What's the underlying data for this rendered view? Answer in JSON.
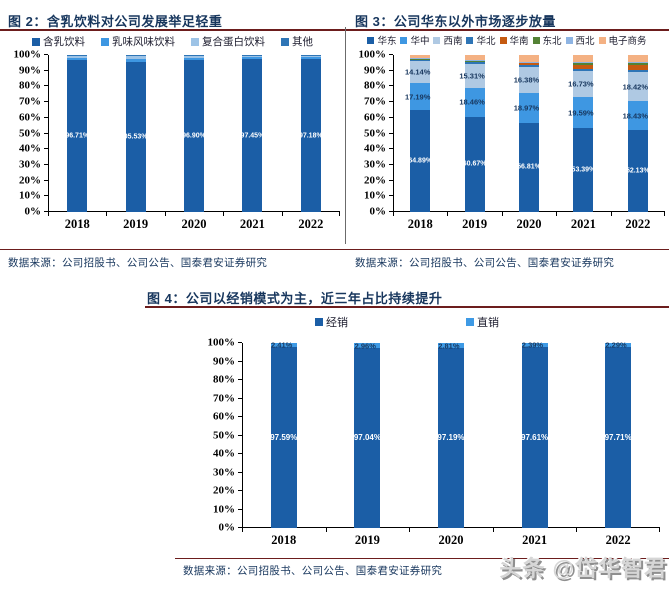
{
  "watermark": "头条 @岱华智君",
  "chart_data": [
    {
      "id": "figure-2",
      "type": "bar",
      "stacked": true,
      "title": "图 2：含乳饮料对公司发展举足轻重",
      "source": "数据来源：公司招股书、公司公告、国泰君安证券研究",
      "categories": [
        "2018",
        "2019",
        "2020",
        "2021",
        "2022"
      ],
      "ylim": [
        0,
        100
      ],
      "ytick_step": 10,
      "ytick_format": "percent",
      "grid": false,
      "legend_position": "top",
      "series": [
        {
          "name": "含乳饮料",
          "color": "#1b5ea6",
          "values": [
            96.71,
            95.53,
            96.9,
            97.45,
            97.18
          ],
          "labels": [
            "96.71%",
            "95.53%",
            "96.90%",
            "97.45%",
            "97.18%"
          ],
          "label_mode": "inside-white"
        },
        {
          "name": "乳味风味饮料",
          "color": "#3e97e2",
          "values": [
            1.5,
            2.1,
            1.5,
            1.2,
            1.4
          ]
        },
        {
          "name": "复合蛋白饮料",
          "color": "#9dc3e6",
          "values": [
            1.5,
            2.0,
            1.3,
            1.1,
            1.2
          ]
        },
        {
          "name": "其他",
          "color": "#2e75b6",
          "values": [
            0.29,
            0.37,
            0.3,
            0.25,
            0.22
          ]
        }
      ]
    },
    {
      "id": "figure-3",
      "type": "bar",
      "stacked": true,
      "title": "图 3：公司华东以外市场逐步放量",
      "source": "数据来源：公司招股书、公司公告、国泰君安证券研究",
      "categories": [
        "2018",
        "2019",
        "2020",
        "2021",
        "2022"
      ],
      "ylim": [
        0,
        100
      ],
      "ytick_step": 10,
      "ytick_format": "percent",
      "grid": false,
      "legend_position": "top",
      "series": [
        {
          "name": "华东",
          "color": "#1b5ea6",
          "values": [
            64.89,
            60.67,
            56.81,
            53.39,
            52.13
          ],
          "labels": [
            "64.89%",
            "60.67%",
            "56.81%",
            "53.39%",
            "52.13%"
          ],
          "label_mode": "inside-white"
        },
        {
          "name": "华中",
          "color": "#3e97e2",
          "values": [
            17.19,
            18.46,
            18.97,
            19.59,
            18.43
          ],
          "labels": [
            "17.19%",
            "18.46%",
            "18.97%",
            "19.59%",
            "18.43%"
          ],
          "label_mode": "on-navy"
        },
        {
          "name": "西南",
          "color": "#afc9e3",
          "values": [
            14.14,
            15.31,
            16.38,
            16.73,
            18.42
          ],
          "labels": [
            "14.14%",
            "15.31%",
            "16.38%",
            "16.73%",
            "18.42%"
          ],
          "label_mode": "on-navy"
        },
        {
          "name": "华北",
          "color": "#2e75b6",
          "values": [
            0.9,
            1.0,
            1.2,
            1.4,
            1.5
          ]
        },
        {
          "name": "华南",
          "color": "#c55a11",
          "values": [
            0.4,
            0.6,
            1.5,
            2.8,
            3.4
          ]
        },
        {
          "name": "东北",
          "color": "#548235",
          "values": [
            0.2,
            0.3,
            0.5,
            1.0,
            1.2
          ]
        },
        {
          "name": "西北",
          "color": "#8eb4e3",
          "values": [
            0.2,
            0.3,
            0.4,
            0.5,
            0.6
          ]
        },
        {
          "name": "电子商务",
          "color": "#f4b183",
          "values": [
            2.08,
            3.36,
            4.24,
            4.59,
            4.32
          ]
        }
      ]
    },
    {
      "id": "figure-4",
      "type": "bar",
      "stacked": true,
      "title": "图 4：公司以经销模式为主，近三年占比持续提升",
      "source": "数据来源：公司招股书、公司公告、国泰君安证券研究",
      "categories": [
        "2018",
        "2019",
        "2020",
        "2021",
        "2022"
      ],
      "ylim": [
        0,
        100
      ],
      "ytick_step": 10,
      "ytick_format": "percent",
      "grid": false,
      "legend_position": "top",
      "series": [
        {
          "name": "经销",
          "color": "#1b5ea6",
          "values": [
            97.59,
            97.04,
            97.19,
            97.61,
            97.71
          ],
          "labels": [
            "97.59%",
            "97.04%",
            "97.19%",
            "97.61%",
            "97.71%"
          ],
          "label_mode": "inside-white"
        },
        {
          "name": "直销",
          "color": "#3e9ae5",
          "values": [
            2.41,
            2.96,
            2.81,
            2.39,
            2.29
          ],
          "labels": [
            "2.41%",
            "2.96%",
            "2.81%",
            "2.39%",
            "2.29%"
          ],
          "label_mode": "on-navy"
        }
      ]
    }
  ]
}
